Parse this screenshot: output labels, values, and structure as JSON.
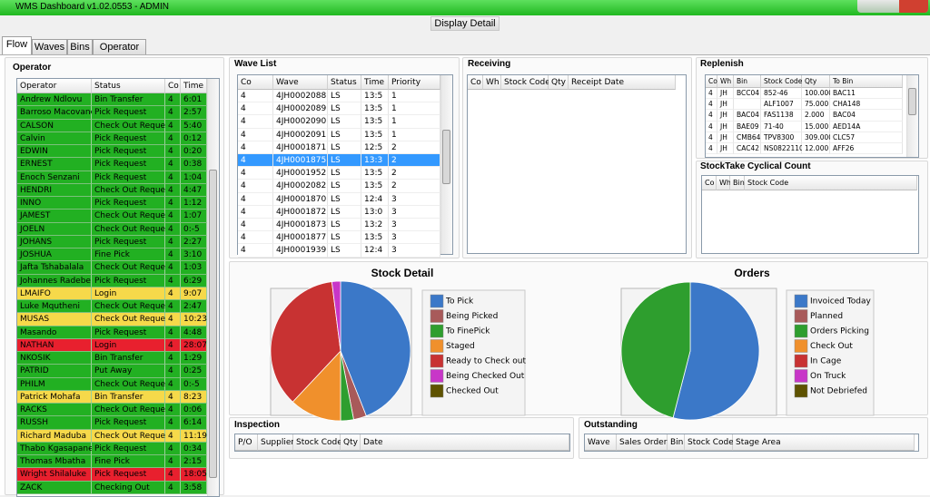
{
  "window": {
    "title": "WMS Dashboard v1.02.0553 - ADMIN"
  },
  "toolbar": {
    "button": "Display Detail"
  },
  "tabs": [
    "Flow",
    "Waves",
    "Bins",
    "Operator"
  ],
  "operator": {
    "title": "Operator",
    "columns": [
      "Operator",
      "Status",
      "Co",
      "Time"
    ],
    "rows": [
      [
        "Andrew Ndlovu",
        "Bin Transfer",
        4,
        "6:01"
      ],
      [
        "Barroso Macovane",
        "Pick Request",
        4,
        "2:57"
      ],
      [
        "CALSON",
        "Check Out Request",
        4,
        "5:40"
      ],
      [
        "Calvin",
        "Pick Request",
        4,
        "0:12"
      ],
      [
        "EDWIN",
        "Pick Request",
        4,
        "0:20"
      ],
      [
        "ERNEST",
        "Pick Request",
        4,
        "0:38"
      ],
      [
        "Enoch Senzani",
        "Pick Request",
        4,
        "1:04"
      ],
      [
        "HENDRI",
        "Check Out Request",
        4,
        "4:47"
      ],
      [
        "INNO",
        "Pick Request",
        4,
        "1:12"
      ],
      [
        "JAMEST",
        "Check Out Request",
        4,
        "1:07"
      ],
      [
        "JOELN",
        "Check Out Request",
        4,
        "0:-5"
      ],
      [
        "JOHANS",
        "Pick Request",
        4,
        "2:27"
      ],
      [
        "JOSHUA",
        "Fine Pick",
        4,
        "3:10"
      ],
      [
        "Jafta Tshabalala",
        "Check Out Request",
        4,
        "1:03"
      ],
      [
        "Johannes Radebe",
        "Pick Request",
        4,
        "6:29"
      ],
      [
        "LMAIFO",
        "Login",
        4,
        "9:07"
      ],
      [
        "Luke Mqutheni",
        "Check Out Request",
        4,
        "2:47"
      ],
      [
        "MUSAS",
        "Check Out Request",
        4,
        "10:23"
      ],
      [
        "Masando",
        "Pick Request",
        4,
        "4:48"
      ],
      [
        "NATHAN",
        "Login",
        4,
        "28:07"
      ],
      [
        "NKOSIK",
        "Bin Transfer",
        4,
        "1:29"
      ],
      [
        "PATRID",
        "Put Away",
        4,
        "0:25"
      ],
      [
        "PHILM",
        "Check Out Request",
        4,
        "0:-5"
      ],
      [
        "Patrick Mohafa",
        "Bin Transfer",
        4,
        "8:23"
      ],
      [
        "RACKS",
        "Check Out Request",
        4,
        "0:06"
      ],
      [
        "RUSSH",
        "Pick Request",
        4,
        "6:14"
      ],
      [
        "Richard Maduba",
        "Check Out Request",
        4,
        "11:19"
      ],
      [
        "Thabo Kgasapane",
        "Pick Request",
        4,
        "0:34"
      ],
      [
        "Thomas Mbatha",
        "Fine Pick",
        4,
        "2:15"
      ],
      [
        "Wright Shilaluke",
        "Pick Request",
        4,
        "18:05"
      ],
      [
        "ZACK",
        "Checking Out",
        4,
        "3:58"
      ]
    ],
    "row_colors": [
      "#22b022",
      "#22b022",
      "#22b022",
      "#22b022",
      "#22b022",
      "#22b022",
      "#22b022",
      "#22b022",
      "#22b022",
      "#22b022",
      "#22b022",
      "#22b022",
      "#22b022",
      "#22b022",
      "#22b022",
      "#f6d94a",
      "#22b022",
      "#f6d94a",
      "#22b022",
      "#e8202e",
      "#22b022",
      "#22b022",
      "#22b022",
      "#f6d94a",
      "#22b022",
      "#22b022",
      "#f6d94a",
      "#22b022",
      "#22b022",
      "#e8202e",
      "#22b022"
    ]
  },
  "wave_list": {
    "title": "Wave List",
    "columns": [
      "Co",
      "Wave",
      "Status",
      "Time",
      "Priority"
    ],
    "rows": [
      [
        4,
        "4JH0002088",
        "LS",
        "13:5",
        1
      ],
      [
        4,
        "4JH0002089",
        "LS",
        "13:5",
        1
      ],
      [
        4,
        "4JH0002090",
        "LS",
        "13:5",
        1
      ],
      [
        4,
        "4JH0002091",
        "LS",
        "13:5",
        1
      ],
      [
        4,
        "4JH0001871",
        "LS",
        "12:5",
        2
      ],
      [
        4,
        "4JH0001875",
        "LS",
        "13:3",
        2
      ],
      [
        4,
        "4JH0001952",
        "LS",
        "13:5",
        2
      ],
      [
        4,
        "4JH0002082",
        "LS",
        "13:5",
        2
      ],
      [
        4,
        "4JH0001870",
        "LS",
        "12:4",
        3
      ],
      [
        4,
        "4JH0001872",
        "LS",
        "13:0",
        3
      ],
      [
        4,
        "4JH0001873",
        "LS",
        "13:2",
        3
      ],
      [
        4,
        "4JH0001877",
        "LS",
        "13:5",
        3
      ],
      [
        4,
        "4JH0001939",
        "LS",
        "12:4",
        3
      ]
    ],
    "selected_row": 5
  },
  "receiving": {
    "title": "Receiving",
    "columns": [
      "Co",
      "Wh",
      "Stock Code",
      "Qty",
      "Receipt Date"
    ]
  },
  "replenish": {
    "title": "Replenish",
    "columns": [
      "Co",
      "Wh",
      "Bin",
      "Stock Code",
      "Qty",
      "To Bin"
    ],
    "rows": [
      [
        4,
        "JH",
        "BCC04",
        "852-46",
        "100.000",
        "BAC11"
      ],
      [
        4,
        "JH",
        null,
        "ALF1007",
        "75.000",
        "CHA148"
      ],
      [
        4,
        "JH",
        "BAC04",
        "FAS1138",
        "2.000",
        "BAC04"
      ],
      [
        4,
        "JH",
        "BAE09",
        "71-40",
        "15.000",
        "AED14A"
      ],
      [
        4,
        "JH",
        "CMB64",
        "TPV8300",
        "309.000",
        "CLC57"
      ],
      [
        4,
        "JH",
        "CAC42",
        "NS0822110",
        "12.000",
        "AFF26"
      ]
    ]
  },
  "stocktake": {
    "title": "StockTake Cyclical Count",
    "columns": [
      "Co",
      "Wh",
      "Bin",
      "Stock Code"
    ]
  },
  "stock_detail": {
    "type": "pie",
    "title": "Stock Detail",
    "categories": [
      "To Pick",
      "Being Picked",
      "To FinePick",
      "Staged",
      "Ready to Check out",
      "Being Checked Out",
      "Checked Out"
    ],
    "values": [
      44,
      3,
      3,
      12,
      36,
      2,
      0
    ],
    "colors": [
      "#3b78c8",
      "#a85a5a",
      "#2e9e2e",
      "#f0902c",
      "#c83232",
      "#c836c8",
      "#5e5200"
    ]
  },
  "orders": {
    "type": "pie",
    "title": "Orders",
    "categories": [
      "Invoiced Today",
      "Planned",
      "Orders Picking",
      "Check Out",
      "In Cage",
      "On Truck",
      "Not Debriefed"
    ],
    "values": [
      54,
      0,
      46,
      0,
      0,
      0,
      0
    ],
    "colors": [
      "#3b78c8",
      "#a85a5a",
      "#2e9e2e",
      "#f0902c",
      "#c83232",
      "#c836c8",
      "#5e5200"
    ]
  },
  "inspection": {
    "title": "Inspection",
    "columns": [
      "P/O",
      "Supplier",
      "Stock Code",
      "Qty",
      "Date"
    ]
  },
  "outstanding": {
    "title": "Outstanding",
    "columns": [
      "Wave",
      "Sales Order",
      "Bin",
      "Stock Code",
      "Stage Area"
    ]
  }
}
